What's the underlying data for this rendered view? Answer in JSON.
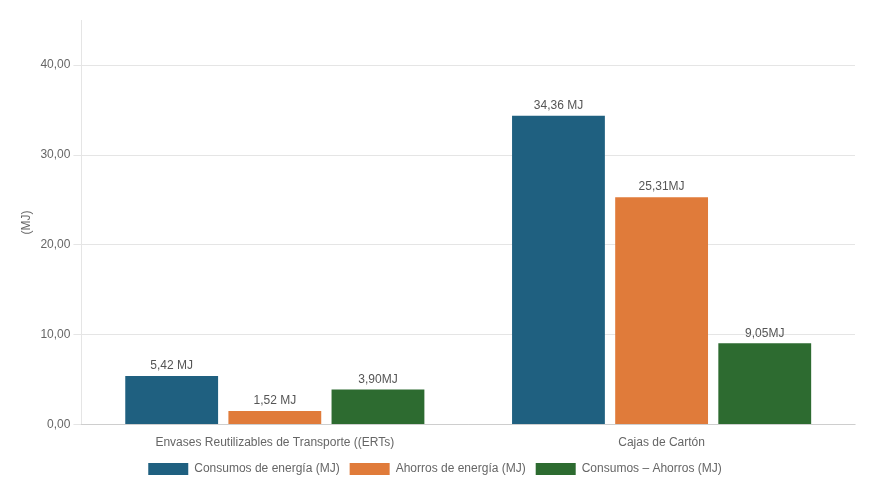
{
  "chart_data": {
    "type": "bar",
    "categories": [
      "Envases Reutilizables de Transporte ((ERTs)",
      "Cajas de Cartón"
    ],
    "series": [
      {
        "name": "Consumos de energía (MJ)",
        "color": "#1f6080",
        "values": [
          5.42,
          34.36
        ],
        "value_labels": [
          "5,42 MJ",
          "34,36 MJ"
        ]
      },
      {
        "name": "Ahorros de energía (MJ)",
        "color": "#e07b3a",
        "values": [
          1.52,
          25.31
        ],
        "value_labels": [
          "1,52 MJ",
          "25,31MJ"
        ]
      },
      {
        "name": "Consumos – Ahorros (MJ)",
        "color": "#2d6b30",
        "values": [
          3.9,
          9.05
        ],
        "value_labels": [
          "3,90MJ",
          "9,05MJ"
        ]
      }
    ],
    "ylabel": "(MJ)",
    "ylim": [
      0,
      45
    ],
    "yticks": [
      {
        "value": 0,
        "label": "0,00"
      },
      {
        "value": 10,
        "label": "10,00"
      },
      {
        "value": 20,
        "label": "20,00"
      },
      {
        "value": 30,
        "label": "30,00"
      },
      {
        "value": 40,
        "label": "40,00"
      }
    ],
    "grid": true,
    "legend": "bottom",
    "data_labels": true
  }
}
